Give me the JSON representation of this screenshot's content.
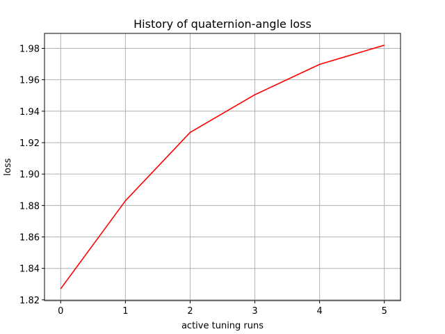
{
  "chart_data": {
    "type": "line",
    "title": "History of quaternion-angle loss",
    "xlabel": "active tuning runs",
    "ylabel": "loss",
    "x": [
      0,
      1,
      2,
      3,
      4,
      5
    ],
    "series": [
      {
        "values": [
          1.827,
          1.883,
          1.9265,
          1.9505,
          1.9698,
          1.982
        ],
        "color": "#ff0000"
      }
    ],
    "xlim": [
      -0.25,
      5.25
    ],
    "ylim": [
      1.8195,
      1.9895
    ],
    "xticks": [
      0,
      1,
      2,
      3,
      4,
      5
    ],
    "xtick_labels": [
      "0",
      "1",
      "2",
      "3",
      "4",
      "5"
    ],
    "yticks": [
      1.82,
      1.84,
      1.86,
      1.88,
      1.9,
      1.92,
      1.94,
      1.96,
      1.98
    ],
    "ytick_labels": [
      "1.82",
      "1.84",
      "1.86",
      "1.88",
      "1.90",
      "1.92",
      "1.94",
      "1.96",
      "1.98"
    ],
    "grid": true,
    "grid_color": "#b0b0b0"
  }
}
